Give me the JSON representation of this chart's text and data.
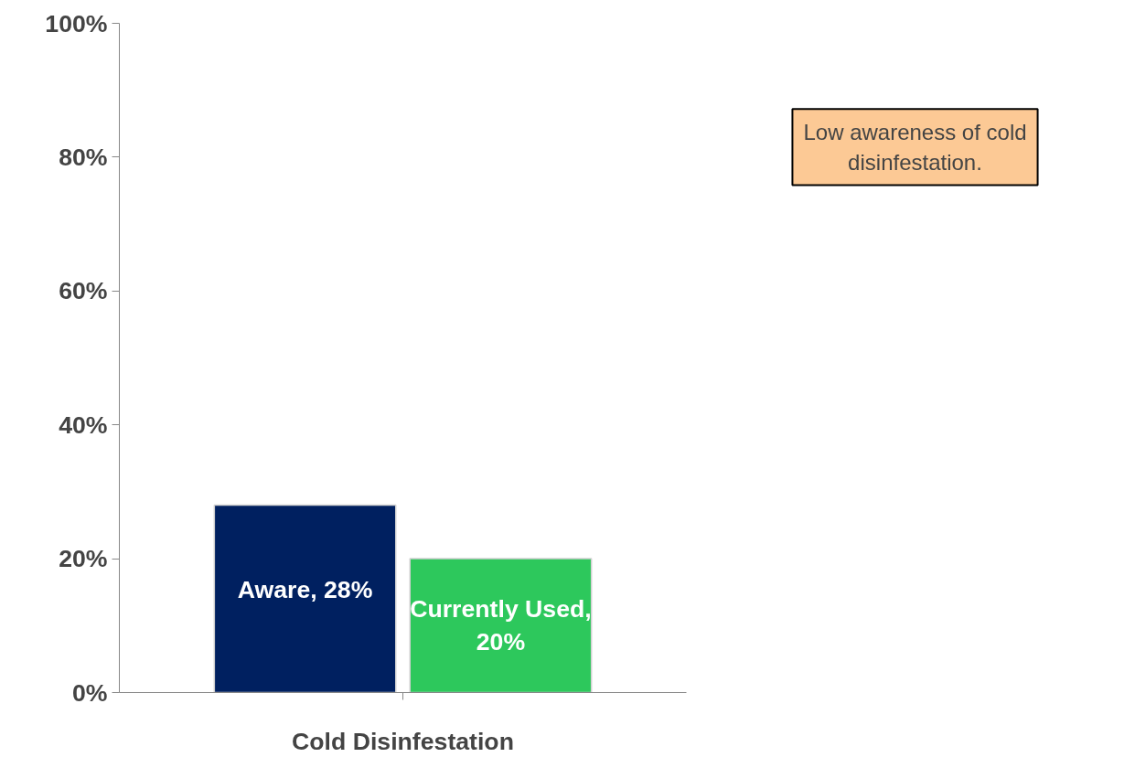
{
  "chart_data": {
    "type": "bar",
    "categories": [
      "Cold Disinfestation"
    ],
    "series": [
      {
        "color": "#002060",
        "values": [
          28
        ],
        "value_labels": [
          "Aware, 28%"
        ]
      },
      {
        "color": "#2dc85c",
        "values": [
          20
        ],
        "value_labels": [
          "Currently Used, 20%"
        ]
      }
    ],
    "ylim": [
      0,
      100
    ],
    "yticks": [
      {
        "value": 0,
        "label": "0%"
      },
      {
        "value": 20,
        "label": "20%"
      },
      {
        "value": 40,
        "label": "40%"
      },
      {
        "value": 60,
        "label": "60%"
      },
      {
        "value": 80,
        "label": "80%"
      },
      {
        "value": 100,
        "label": "100%"
      }
    ],
    "grid": false,
    "annotations": [
      "Low awareness of cold disinfestation."
    ]
  }
}
